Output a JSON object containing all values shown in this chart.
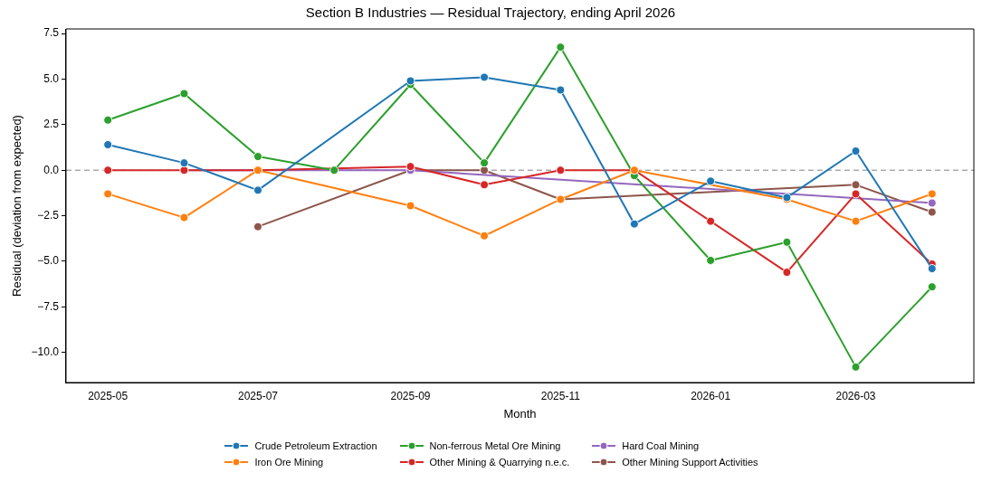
{
  "chart_data": {
    "type": "line",
    "title": "Section B Industries — Residual Trajectory, ending April 2026",
    "xlabel": "Month",
    "ylabel": "Residual (deviation from expected)",
    "x": [
      "2025-05",
      "2025-06",
      "2025-07",
      "2025-08",
      "2025-09",
      "2025-10",
      "2025-11",
      "2025-12",
      "2026-01",
      "2026-02",
      "2026-03",
      "2026-04"
    ],
    "series": [
      {
        "name": "Crude Petroleum Extraction",
        "color": "#1f77b4",
        "values": [
          1.4,
          0.4,
          -1.1,
          null,
          4.9,
          5.1,
          4.4,
          -2.95,
          -0.6,
          -1.5,
          1.05,
          -5.4
        ]
      },
      {
        "name": "Iron Ore Mining",
        "color": "#ff7f0e",
        "values": [
          -1.3,
          -2.6,
          0,
          null,
          -1.95,
          -3.6,
          -1.6,
          0,
          null,
          -1.6,
          -2.8,
          -1.3
        ]
      },
      {
        "name": "Non-ferrous Metal Ore Mining",
        "color": "#2ca02c",
        "values": [
          2.75,
          4.2,
          0.75,
          0,
          4.7,
          0.4,
          6.75,
          -0.3,
          -4.95,
          -3.95,
          -10.8,
          -6.4
        ]
      },
      {
        "name": "Other Mining & Quarrying n.e.c.",
        "color": "#d62728",
        "values": [
          0,
          0,
          0,
          null,
          0.2,
          -0.8,
          0,
          0,
          -2.8,
          -5.6,
          -1.3,
          -5.15
        ]
      },
      {
        "name": "Hard Coal Mining",
        "color": "#9467bd",
        "values": [
          null,
          0,
          null,
          null,
          0,
          null,
          null,
          null,
          null,
          null,
          null,
          -1.8
        ]
      },
      {
        "name": "Other Mining Support Activities",
        "color": "#8c564b",
        "values": [
          null,
          null,
          -3.1,
          null,
          0,
          0,
          -1.6,
          null,
          null,
          null,
          -0.8,
          -2.3
        ]
      }
    ],
    "xlim": [
      "2025-04-14",
      "2026-04-18"
    ],
    "xticks": [
      "2025-05",
      "2025-07",
      "2025-09",
      "2025-11",
      "2026-01",
      "2026-03"
    ],
    "ylim": [
      -11.65,
      7.75
    ],
    "yticks": [
      {
        "value": -10,
        "label": "−10.0"
      },
      {
        "value": -7.5,
        "label": "−7.5"
      },
      {
        "value": -5,
        "label": "−5.0"
      },
      {
        "value": -2.5,
        "label": "−2.5"
      },
      {
        "value": 0,
        "label": "0.0"
      },
      {
        "value": 2.5,
        "label": "2.5"
      },
      {
        "value": 5,
        "label": "5.0"
      },
      {
        "value": 7.5,
        "label": "7.5"
      }
    ],
    "ref_lines": [
      {
        "axis": "y",
        "value": 0,
        "color": "#808080",
        "line_style": "dashed"
      }
    ],
    "grid": false,
    "legend": "bottom",
    "marker": "circle",
    "line_style": "solid"
  }
}
